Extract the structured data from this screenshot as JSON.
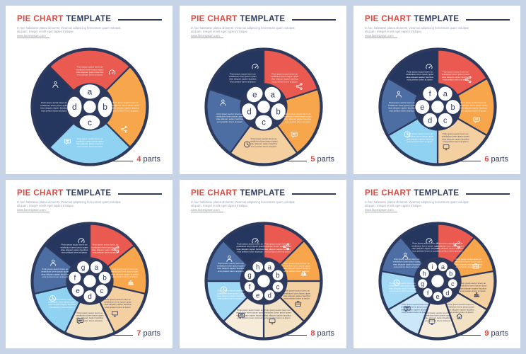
{
  "shared": {
    "title_primary": "PIE CHART",
    "title_secondary": "TEMPLATE",
    "subtitle": "In hac habitasse platea dictumst. Vivamus adipiscing fermentum quam volutpat aliquam. Integer et elit eget sapien tristique.",
    "subtitle_link": "www.loremipsum.com",
    "segment_text_lines": [
      "Proin ipsum auctor lorem an",
      "vestibulum lorem ipsum quam",
      "vitae aliquam sapien faucibus",
      "eros pretium lorem at ipsum"
    ]
  },
  "ui_colors": {
    "page_background": "#c7d3e7",
    "panel_background": "#ffffff",
    "title_red": "#e2453e",
    "navy": "#2d3a5e",
    "subtitle_gray": "#9aa2b5"
  },
  "chart_data": [
    {
      "type": "pie",
      "title": "PIE CHART TEMPLATE",
      "parts": 4,
      "rotation_deg": -45,
      "labels": [
        "a",
        "b",
        "c",
        "d"
      ],
      "values": [
        25,
        25,
        25,
        25
      ],
      "colors": [
        "#ea5a50",
        "#f8a64c",
        "#8fd2f2",
        "#26375f"
      ],
      "content_colors": [
        "#ffffff",
        "#ffffff",
        "#ffffff",
        "#ffffff"
      ],
      "icons": [
        "speedometer",
        "share",
        "chat",
        "person"
      ],
      "caption_value": "4",
      "caption_label": "parts"
    },
    {
      "type": "pie",
      "title": "PIE CHART TEMPLATE",
      "parts": 5,
      "rotation_deg": 0,
      "labels": [
        "a",
        "b",
        "c",
        "d",
        "e"
      ],
      "values": [
        20,
        20,
        20,
        20,
        20
      ],
      "colors": [
        "#ea5a50",
        "#f8a64c",
        "#f4cfa0",
        "#4c6ea2",
        "#26375f"
      ],
      "content_colors": [
        "#ffffff",
        "#ffffff",
        "#2d3a5e",
        "#ffffff",
        "#ffffff"
      ],
      "icons": [
        "share",
        "chat",
        "clock",
        "person",
        "speedometer"
      ],
      "caption_value": "5",
      "caption_label": "parts"
    },
    {
      "type": "pie",
      "title": "PIE CHART TEMPLATE",
      "parts": 6,
      "rotation_deg": 0,
      "labels": [
        "a",
        "b",
        "c",
        "d",
        "e",
        "f"
      ],
      "values": [
        16.7,
        16.7,
        16.7,
        16.7,
        16.7,
        16.7
      ],
      "colors": [
        "#ea5a50",
        "#f8a64c",
        "#f4cfa0",
        "#8fd2f2",
        "#4c6ea2",
        "#26375f"
      ],
      "content_colors": [
        "#ffffff",
        "#ffffff",
        "#2d3a5e",
        "#ffffff",
        "#ffffff",
        "#ffffff"
      ],
      "icons": [
        "share",
        "chat",
        "monitor",
        "clock",
        "person",
        "speedometer"
      ],
      "caption_value": "6",
      "caption_label": "parts"
    },
    {
      "type": "pie",
      "title": "PIE CHART TEMPLATE",
      "parts": 7,
      "rotation_deg": 0,
      "labels": [
        "a",
        "b",
        "c",
        "d",
        "e",
        "f",
        "g"
      ],
      "values": [
        14.3,
        14.3,
        14.3,
        14.3,
        14.3,
        14.3,
        14.3
      ],
      "colors": [
        "#ea5a50",
        "#f8a64c",
        "#f4cfa0",
        "#f3e1c4",
        "#8fd2f2",
        "#4c6ea2",
        "#26375f"
      ],
      "content_colors": [
        "#ffffff",
        "#ffffff",
        "#2d3a5e",
        "#2d3a5e",
        "#ffffff",
        "#ffffff",
        "#ffffff"
      ],
      "icons": [
        "share",
        "bar-chart",
        "monitor",
        "chat",
        "clock",
        "person",
        "speedometer"
      ],
      "caption_value": "7",
      "caption_label": "parts"
    },
    {
      "type": "pie",
      "title": "PIE CHART TEMPLATE",
      "parts": 8,
      "rotation_deg": 0,
      "labels": [
        "a",
        "b",
        "c",
        "d",
        "e",
        "f",
        "g",
        "h"
      ],
      "values": [
        12.5,
        12.5,
        12.5,
        12.5,
        12.5,
        12.5,
        12.5,
        12.5
      ],
      "colors": [
        "#ea5a50",
        "#f8a64c",
        "#f4cfa0",
        "#f3e1c4",
        "#f7ebd9",
        "#9ed8f4",
        "#4c6ea2",
        "#26375f"
      ],
      "content_colors": [
        "#ffffff",
        "#ffffff",
        "#2d3a5e",
        "#2d3a5e",
        "#2d3a5e",
        "#ffffff",
        "#ffffff",
        "#ffffff"
      ],
      "icons": [
        "share",
        "bar-chart",
        "briefcase",
        "monitor",
        "chat",
        "clock",
        "person",
        "speedometer"
      ],
      "caption_value": "8",
      "caption_label": "parts"
    },
    {
      "type": "pie",
      "title": "PIE CHART TEMPLATE",
      "parts": 9,
      "rotation_deg": 0,
      "labels": [
        "a",
        "b",
        "c",
        "d",
        "e",
        "f",
        "g",
        "h",
        "i"
      ],
      "values": [
        11.1,
        11.1,
        11.1,
        11.1,
        11.1,
        11.1,
        11.1,
        11.1,
        11.1
      ],
      "colors": [
        "#ea5a50",
        "#f8a64c",
        "#f4cfa0",
        "#f3e1c4",
        "#f7ebd9",
        "#cbe7f8",
        "#a3d9f4",
        "#4c6ea2",
        "#26375f"
      ],
      "content_colors": [
        "#ffffff",
        "#ffffff",
        "#2d3a5e",
        "#2d3a5e",
        "#2d3a5e",
        "#2d3a5e",
        "#ffffff",
        "#ffffff",
        "#ffffff"
      ],
      "icons": [
        "share",
        "briefcase",
        "bar-chart",
        "home",
        "monitor",
        "chat",
        "clock",
        "person",
        "speedometer"
      ],
      "caption_value": "9",
      "caption_label": "parts"
    }
  ]
}
